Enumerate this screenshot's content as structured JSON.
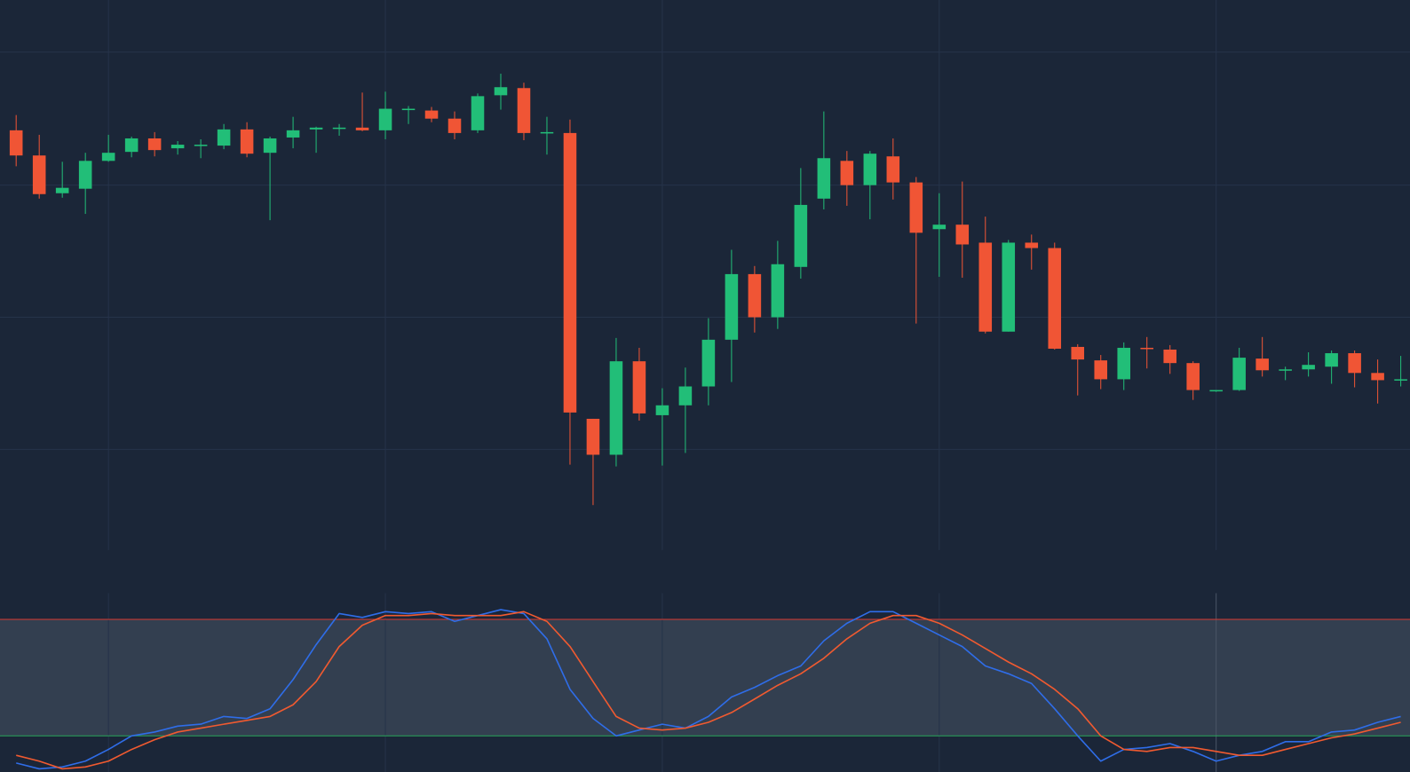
{
  "chart_data": [
    {
      "type": "candlestick",
      "up_color": "#22be78",
      "down_color": "#f05535",
      "grid": true,
      "grid_color": "#26334a",
      "xlim": [
        -0.7,
        60.4
      ],
      "xticks": [
        4,
        16,
        28,
        40,
        52
      ],
      "ylim": [
        0,
        612
      ],
      "yticks": [
        112,
        259,
        406,
        554
      ],
      "open": [
        467,
        439,
        397,
        402,
        433,
        443,
        458,
        447,
        450,
        450,
        468,
        442,
        459,
        468,
        469,
        470,
        467,
        490,
        489,
        480,
        467,
        506,
        514,
        464,
        464,
        146,
        106,
        210,
        150,
        161,
        182,
        234,
        307,
        259,
        315,
        391,
        433,
        406,
        438,
        409,
        357,
        362,
        342,
        243,
        342,
        336,
        226,
        211,
        190,
        225,
        223,
        208,
        177,
        178,
        213,
        200,
        201,
        204,
        219,
        197,
        189
      ],
      "high": [
        484,
        462,
        432,
        442,
        462,
        460,
        465,
        455,
        457,
        474,
        476,
        460,
        482,
        471,
        474,
        509,
        510,
        494,
        493,
        488,
        508,
        530,
        520,
        482,
        479,
        146,
        236,
        225,
        180,
        203,
        258,
        334,
        316,
        344,
        425,
        488,
        444,
        444,
        458,
        415,
        397,
        410,
        371,
        345,
        351,
        342,
        229,
        217,
        231,
        237,
        228,
        210,
        178,
        225,
        237,
        204,
        220,
        222,
        222,
        212,
        216
      ],
      "low": [
        427,
        391,
        392,
        374,
        432,
        437,
        438,
        440,
        436,
        446,
        437,
        367,
        447,
        442,
        461,
        466,
        457,
        474,
        476,
        457,
        464,
        490,
        456,
        440,
        95,
        50,
        93,
        144,
        94,
        108,
        161,
        187,
        242,
        246,
        302,
        379,
        383,
        368,
        390,
        252,
        304,
        303,
        241,
        243,
        312,
        223,
        172,
        179,
        178,
        202,
        196,
        167,
        176,
        177,
        193,
        189,
        193,
        185,
        181,
        163,
        182
      ],
      "close": [
        439,
        396,
        403,
        433,
        442,
        458,
        445,
        451,
        451,
        468,
        441,
        458,
        467,
        470,
        470,
        467,
        491,
        491,
        480,
        464,
        505,
        515,
        464,
        465,
        153,
        106,
        210,
        152,
        161,
        182,
        234,
        307,
        259,
        318,
        384,
        436,
        406,
        441,
        409,
        353,
        362,
        340,
        243,
        342,
        336,
        224,
        212,
        190,
        225,
        224,
        208,
        178,
        178,
        214,
        200,
        201,
        206,
        219,
        197,
        189,
        190
      ]
    },
    {
      "type": "line",
      "xlim": [
        -0.7,
        60.4
      ],
      "xticks": [
        4,
        16,
        28,
        40,
        52
      ],
      "ylim": [
        0,
        100
      ],
      "levels": [
        {
          "value": 80,
          "color": "#d8392f"
        },
        {
          "value": 20,
          "color": "#2aa55a"
        }
      ],
      "band_color": "#333f50",
      "series": [
        {
          "color": "#2f6de8",
          "values": [
            6,
            3,
            4,
            7,
            13,
            20,
            22,
            25,
            26,
            30,
            29,
            34,
            49,
            67,
            83,
            81,
            84,
            83,
            84,
            79,
            82,
            85,
            83,
            70,
            44,
            29,
            20,
            23,
            26,
            24,
            30,
            40,
            45,
            51,
            56,
            69,
            78,
            84,
            84,
            78,
            72,
            66,
            56,
            52,
            47,
            34,
            20,
            7,
            13,
            14,
            16,
            12,
            7,
            10,
            12,
            17,
            17,
            22,
            23,
            27,
            30
          ]
        },
        {
          "color": "#f05a30",
          "values": [
            10,
            7,
            3,
            4,
            7,
            13,
            18,
            22,
            24,
            26,
            28,
            30,
            36,
            48,
            66,
            77,
            82,
            82,
            83,
            82,
            82,
            82,
            84,
            79,
            66,
            48,
            30,
            24,
            23,
            24,
            27,
            32,
            39,
            46,
            52,
            60,
            70,
            78,
            82,
            82,
            78,
            72,
            65,
            58,
            52,
            44,
            34,
            20,
            13,
            12,
            14,
            14,
            12,
            10,
            10,
            13,
            16,
            19,
            21,
            24,
            27
          ]
        }
      ]
    }
  ]
}
